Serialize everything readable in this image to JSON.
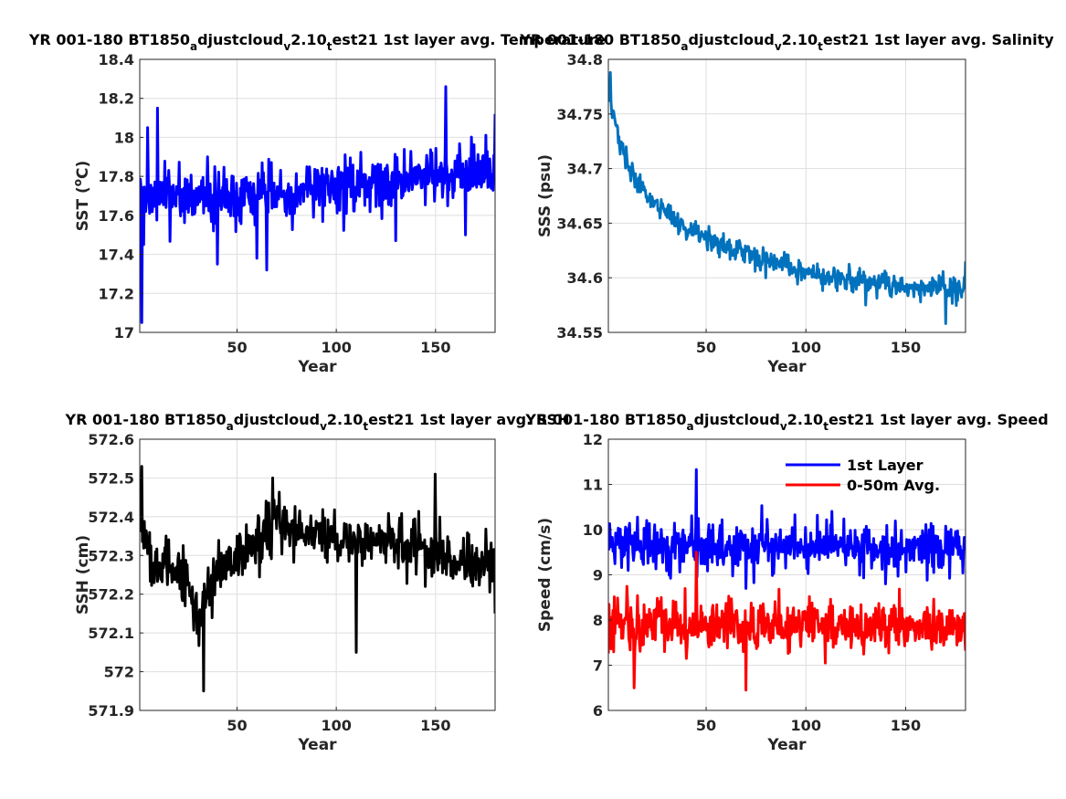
{
  "chart_data": [
    {
      "type": "line",
      "title": {
        "pre": "YR 001-180 BT1850",
        "s1": "a",
        "mid1": "djustcloud",
        "s2": "v",
        "mid2": "2.10",
        "s3": "t",
        "post": "est21 1st layer avg. Temperature"
      },
      "xlabel": "Year",
      "ylabel": {
        "pre": "SST (",
        "sup": "o",
        "post": "C)"
      },
      "xlim": [
        1,
        180
      ],
      "ylim": [
        17,
        18.4
      ],
      "xticks": [
        50,
        100,
        150
      ],
      "yticks": [
        17,
        17.2,
        17.4,
        17.6,
        17.8,
        18,
        18.2,
        18.4
      ],
      "ytick_labels": [
        "17",
        "17.2",
        "17.4",
        "17.6",
        "17.8",
        "18",
        "18.2",
        "18.4"
      ],
      "grid": true,
      "series": [
        {
          "color": "#0000ff",
          "model": {
            "mean": [
              [
                1,
                17.72
              ],
              [
                40,
                17.68
              ],
              [
                90,
                17.73
              ],
              [
                130,
                17.78
              ],
              [
                180,
                17.82
              ]
            ],
            "amp": [
              [
                1,
                0.26
              ],
              [
                180,
                0.26
              ]
            ],
            "seed": 11
          },
          "x": [
            1,
            2,
            3,
            4,
            5,
            10,
            35,
            40,
            60,
            65,
            130,
            155,
            165,
            180
          ],
          "y": [
            17.72,
            17.05,
            17.45,
            17.62,
            18.05,
            18.15,
            17.9,
            17.35,
            17.38,
            17.32,
            17.47,
            18.26,
            17.5,
            18.12
          ]
        }
      ]
    },
    {
      "type": "line",
      "title": {
        "pre": "YR 001-180 BT1850",
        "s1": "a",
        "mid1": "djustcloud",
        "s2": "v",
        "mid2": "2.10",
        "s3": "t",
        "post": "est21 1st layer avg. Salinity"
      },
      "xlabel": "Year",
      "ylabel": {
        "pre": "SSS (psu)"
      },
      "xlim": [
        1,
        180
      ],
      "ylim": [
        34.55,
        34.8
      ],
      "xticks": [
        50,
        100,
        150
      ],
      "yticks": [
        34.55,
        34.6,
        34.65,
        34.7,
        34.75,
        34.8
      ],
      "ytick_labels": [
        "34.55",
        "34.6",
        "34.65",
        "34.7",
        "34.75",
        "34.8"
      ],
      "grid": true,
      "series": [
        {
          "color": "#0072bd",
          "model": {
            "mean": [
              [
                1,
                34.77
              ],
              [
                5,
                34.735
              ],
              [
                10,
                34.705
              ],
              [
                20,
                34.675
              ],
              [
                40,
                34.645
              ],
              [
                60,
                34.63
              ],
              [
                90,
                34.61
              ],
              [
                120,
                34.6
              ],
              [
                150,
                34.59
              ],
              [
                180,
                34.59
              ]
            ],
            "amp": [
              [
                1,
                0.016
              ],
              [
                180,
                0.02
              ]
            ],
            "seed": 29
          },
          "x": [
            2,
            10,
            40,
            80,
            130,
            170,
            180
          ],
          "y": [
            34.788,
            34.72,
            34.635,
            34.6,
            34.575,
            34.558,
            34.615
          ]
        }
      ]
    },
    {
      "type": "line",
      "title": {
        "pre": "YR 001-180 BT1850",
        "s1": "a",
        "mid1": "djustcloud",
        "s2": "v",
        "mid2": "2.10",
        "s3": "t",
        "post": "est21 1st layer avg. SSH"
      },
      "xlabel": "Year",
      "ylabel": {
        "pre": "SSH (cm)"
      },
      "xlim": [
        1,
        180
      ],
      "ylim": [
        571.9,
        572.6
      ],
      "xticks": [
        50,
        100,
        150
      ],
      "yticks": [
        571.9,
        572,
        572.1,
        572.2,
        572.3,
        572.4,
        572.5,
        572.6
      ],
      "ytick_labels": [
        "571.9",
        "572",
        "572.1",
        "572.2",
        "572.3",
        "572.4",
        "572.5",
        "572.6"
      ],
      "grid": true,
      "series": [
        {
          "color": "#000000",
          "model": {
            "mean": [
              [
                1,
                572.42
              ],
              [
                8,
                572.27
              ],
              [
                20,
                572.25
              ],
              [
                30,
                572.14
              ],
              [
                40,
                572.25
              ],
              [
                55,
                572.32
              ],
              [
                70,
                572.38
              ],
              [
                100,
                572.33
              ],
              [
                140,
                572.33
              ],
              [
                160,
                572.28
              ],
              [
                180,
                572.28
              ]
            ],
            "amp": [
              [
                1,
                0.13
              ],
              [
                180,
                0.12
              ]
            ],
            "seed": 53
          },
          "x": [
            1,
            2,
            33,
            68,
            110,
            150,
            180
          ],
          "y": [
            572.36,
            572.53,
            571.95,
            572.5,
            572.05,
            572.51,
            572.15
          ]
        }
      ]
    },
    {
      "type": "line",
      "title": {
        "pre": "YR 001-180 BT1850",
        "s1": "a",
        "mid1": "djustcloud",
        "s2": "v",
        "mid2": "2.10",
        "s3": "t",
        "post": "est21 1st layer avg. Speed"
      },
      "xlabel": "Year",
      "ylabel": {
        "pre": "Speed (cm/s)"
      },
      "xlim": [
        1,
        180
      ],
      "ylim": [
        6,
        12
      ],
      "xticks": [
        50,
        100,
        150
      ],
      "yticks": [
        6,
        7,
        8,
        9,
        10,
        11,
        12
      ],
      "ytick_labels": [
        "6",
        "7",
        "8",
        "9",
        "10",
        "11",
        "12"
      ],
      "grid": true,
      "legend": {
        "location": "top-right",
        "entries": [
          "1st Layer",
          "0-50m Avg."
        ]
      },
      "series": [
        {
          "name": "1st Layer",
          "color": "#0000ff",
          "model": {
            "mean": [
              [
                1,
                9.65
              ],
              [
                180,
                9.6
              ]
            ],
            "amp": [
              [
                1,
                0.95
              ],
              [
                180,
                0.95
              ]
            ],
            "seed": 71
          },
          "x": [
            45,
            70,
            140
          ],
          "y": [
            11.33,
            8.7,
            8.8
          ]
        },
        {
          "name": "0-50m Avg.",
          "color": "#ff0000",
          "model": {
            "mean": [
              [
                1,
                7.9
              ],
              [
                180,
                7.85
              ]
            ],
            "amp": [
              [
                1,
                1.05
              ],
              [
                180,
                1.05
              ]
            ],
            "seed": 97
          },
          "x": [
            45,
            14,
            70
          ],
          "y": [
            9.5,
            6.5,
            6.45
          ]
        }
      ]
    }
  ]
}
